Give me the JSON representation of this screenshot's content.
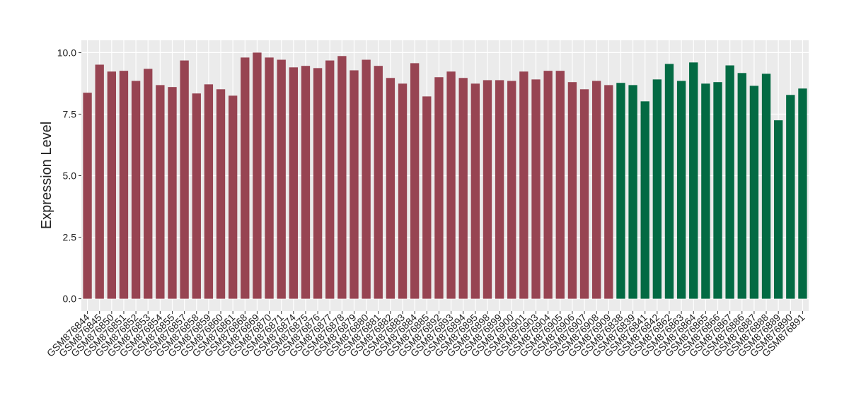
{
  "chart_data": {
    "type": "bar",
    "y_label": "Expression Level",
    "categories": [
      "GSM876844",
      "GSM876845",
      "GSM876850",
      "GSM876851",
      "GSM876852",
      "GSM876853",
      "GSM876854",
      "GSM876855",
      "GSM876857",
      "GSM876858",
      "GSM876859",
      "GSM876860",
      "GSM876861",
      "GSM876868",
      "GSM876869",
      "GSM876870",
      "GSM876871",
      "GSM876874",
      "GSM876875",
      "GSM876876",
      "GSM876877",
      "GSM876878",
      "GSM876879",
      "GSM876880",
      "GSM876881",
      "GSM876882",
      "GSM876883",
      "GSM876884",
      "GSM876885",
      "GSM876892",
      "GSM876893",
      "GSM876894",
      "GSM876895",
      "GSM876898",
      "GSM876899",
      "GSM876900",
      "GSM876901",
      "GSM876903",
      "GSM876904",
      "GSM876905",
      "GSM876906",
      "GSM876907",
      "GSM876908",
      "GSM876909",
      "GSM876838",
      "GSM876839",
      "GSM876841",
      "GSM876842",
      "GSM876862",
      "GSM876863",
      "GSM876864",
      "GSM876865",
      "GSM876866",
      "GSM876867",
      "GSM876886",
      "GSM876887",
      "GSM876888",
      "GSM876889",
      "GSM876890",
      "GSM876891"
    ],
    "values": [
      8.37,
      9.51,
      9.23,
      9.26,
      8.85,
      9.34,
      8.68,
      8.6,
      9.68,
      8.34,
      8.71,
      8.51,
      8.25,
      9.8,
      10.0,
      9.8,
      9.71,
      9.4,
      9.46,
      9.37,
      9.68,
      9.86,
      9.28,
      9.71,
      9.46,
      8.97,
      8.74,
      9.57,
      8.22,
      9.0,
      9.23,
      8.97,
      8.74,
      8.88,
      8.88,
      8.85,
      9.23,
      8.91,
      9.26,
      9.26,
      8.8,
      8.51,
      8.85,
      8.68,
      8.77,
      8.68,
      8.02,
      8.91,
      9.54,
      8.85,
      9.6,
      8.74,
      8.8,
      9.48,
      9.17,
      8.65,
      9.14,
      7.25,
      8.28,
      8.54
    ],
    "colors": [
      "#974452",
      "#974452",
      "#974452",
      "#974452",
      "#974452",
      "#974452",
      "#974452",
      "#974452",
      "#974452",
      "#974452",
      "#974452",
      "#974452",
      "#974452",
      "#974452",
      "#974452",
      "#974452",
      "#974452",
      "#974452",
      "#974452",
      "#974452",
      "#974452",
      "#974452",
      "#974452",
      "#974452",
      "#974452",
      "#974452",
      "#974452",
      "#974452",
      "#974452",
      "#974452",
      "#974452",
      "#974452",
      "#974452",
      "#974452",
      "#974452",
      "#974452",
      "#974452",
      "#974452",
      "#974452",
      "#974452",
      "#974452",
      "#974452",
      "#974452",
      "#974452",
      "#036a43",
      "#036a43",
      "#036a43",
      "#036a43",
      "#036a43",
      "#036a43",
      "#036a43",
      "#036a43",
      "#036a43",
      "#036a43",
      "#036a43",
      "#036a43",
      "#036a43",
      "#036a43",
      "#036a43",
      "#036a43"
    ],
    "ylim": [
      -0.5,
      10.5
    ],
    "yticks": [
      {
        "value": 0,
        "label": "0.0"
      },
      2.5,
      {
        "value": 5,
        "label": "5.0"
      },
      7.5,
      {
        "value": 10,
        "label": "10.0"
      }
    ],
    "grid": true
  }
}
